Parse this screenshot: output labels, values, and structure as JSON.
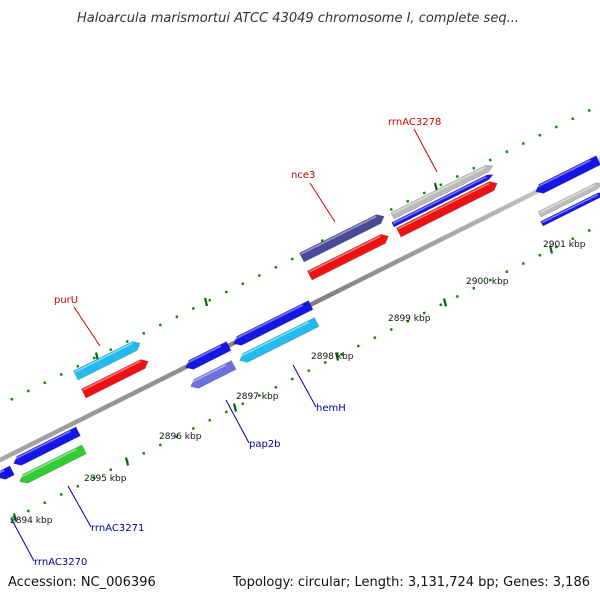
{
  "title": "Haloarcula marismortui ATCC 43049 chromosome I, complete seq...",
  "footer": {
    "accession": "Accession: NC_006396",
    "summary": "Topology: circular; Length: 3,131,724 bp; Genes: 3,186"
  },
  "colors": {
    "forward_label": "#cc0000",
    "reverse_label": "#000099",
    "backbone": "#8c8c8c",
    "tick_minor": "#008800",
    "blue": "#1515e6",
    "cyan": "#22bbee",
    "red": "#ee1111",
    "slate": "#4a4a9a",
    "lavender": "#7070dd",
    "green": "#33cc33",
    "gray": "#bbbbbb"
  },
  "ticks": [
    {
      "label": "2894 kbp"
    },
    {
      "label": "2895 kbp"
    },
    {
      "label": "2896 kbp"
    },
    {
      "label": "2897 kbp"
    },
    {
      "label": "2898 kbp"
    },
    {
      "label": "2899 kbp"
    },
    {
      "label": "2900 kbp"
    },
    {
      "label": "2901 kbp"
    }
  ],
  "forward_labels": [
    {
      "text": "purU"
    },
    {
      "text": "nce3"
    },
    {
      "text": "rrnAC3278"
    }
  ],
  "reverse_labels": [
    {
      "text": "rrnAC3270"
    },
    {
      "text": "rrnAC3271"
    },
    {
      "text": "pap2b"
    },
    {
      "text": "hemH"
    }
  ]
}
